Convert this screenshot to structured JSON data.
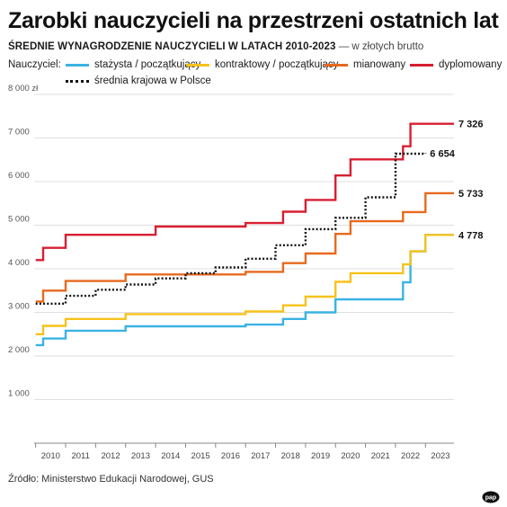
{
  "header": {
    "title": "Zarobki nauczycieli na przestrzeni ostatnich lat",
    "subtitle_bold": "ŚREDNIE WYNAGRODZENIE NAUCZYCIELI W LATACH 2010-2023",
    "subtitle_light": " — w złotych brutto"
  },
  "legend": {
    "title": "Nauczyciel:",
    "items": [
      {
        "label": "stażysta / początkujący",
        "color": "#3ab3e3",
        "style": "solid"
      },
      {
        "label": "kontraktowy / początkujący",
        "color": "#f7c21c",
        "style": "solid"
      },
      {
        "label": "mianowany",
        "color": "#e8691e",
        "style": "solid"
      },
      {
        "label": "dyplomowany",
        "color": "#d81e32",
        "style": "solid"
      },
      {
        "label": "średnia krajowa w Polsce",
        "color": "#111111",
        "style": "dotted"
      }
    ]
  },
  "footer": {
    "source": "Źródło: Ministerstwo Edukacji Narodowej, GUS"
  },
  "logo": {
    "text": "pap"
  },
  "chart_data": {
    "type": "line",
    "step": true,
    "x_unit": "year (fractional)",
    "xlim": [
      2009.45,
      2023.45
    ],
    "ylim": [
      0,
      8000
    ],
    "yticks": [
      0,
      1000,
      2000,
      3000,
      4000,
      5000,
      6000,
      7000,
      8000
    ],
    "ytick_labels": [
      "",
      "1 000",
      "2 000",
      "3 000",
      "4 000",
      "5 000",
      "6 000",
      "7 000",
      "8 000 zł"
    ],
    "xtick_labels": [
      "2010",
      "2011",
      "2012",
      "2013",
      "2014",
      "2015",
      "2016",
      "2017",
      "2018",
      "2019",
      "2020",
      "2021",
      "2022",
      "2023"
    ],
    "grid": true,
    "series": [
      {
        "name": "stażysta / początkujący",
        "color": "#3ab3e3",
        "points": [
          [
            2009.5,
            2250
          ],
          [
            2009.75,
            2400
          ],
          [
            2010.5,
            2580
          ],
          [
            2012.5,
            2680
          ],
          [
            2016.5,
            2720
          ],
          [
            2017.75,
            2850
          ],
          [
            2018.5,
            3000
          ],
          [
            2019.5,
            3300
          ],
          [
            2021.5,
            3300
          ],
          [
            2021.75,
            3690
          ],
          [
            2022.0,
            4400
          ],
          [
            2022.5,
            4778
          ],
          [
            2023.45,
            4778
          ]
        ]
      },
      {
        "name": "kontraktowy / początkujący",
        "color": "#f7c21c",
        "points": [
          [
            2009.5,
            2500
          ],
          [
            2009.75,
            2690
          ],
          [
            2010.5,
            2850
          ],
          [
            2012.5,
            2960
          ],
          [
            2016.5,
            3020
          ],
          [
            2017.75,
            3160
          ],
          [
            2018.5,
            3360
          ],
          [
            2019.5,
            3700
          ],
          [
            2020.0,
            3900
          ],
          [
            2021.75,
            4100
          ],
          [
            2022.0,
            4400
          ],
          [
            2022.5,
            4778
          ],
          [
            2023.45,
            4778
          ]
        ]
      },
      {
        "name": "mianowany",
        "color": "#e8691e",
        "points": [
          [
            2009.5,
            3250
          ],
          [
            2009.75,
            3500
          ],
          [
            2010.5,
            3720
          ],
          [
            2012.5,
            3870
          ],
          [
            2016.5,
            3930
          ],
          [
            2017.75,
            4130
          ],
          [
            2018.5,
            4350
          ],
          [
            2019.5,
            4800
          ],
          [
            2020.0,
            5090
          ],
          [
            2021.75,
            5300
          ],
          [
            2022.5,
            5733
          ],
          [
            2023.45,
            5733
          ]
        ]
      },
      {
        "name": "dyplomowany",
        "color": "#d81e32",
        "points": [
          [
            2009.5,
            4200
          ],
          [
            2009.75,
            4480
          ],
          [
            2010.5,
            4780
          ],
          [
            2013.5,
            4970
          ],
          [
            2016.5,
            5050
          ],
          [
            2017.75,
            5310
          ],
          [
            2018.5,
            5580
          ],
          [
            2019.5,
            6140
          ],
          [
            2020.0,
            6510
          ],
          [
            2021.75,
            6810
          ],
          [
            2022.0,
            7326
          ],
          [
            2023.45,
            7326
          ]
        ]
      },
      {
        "name": "średnia krajowa w Polsce",
        "color": "#111111",
        "dotted": true,
        "points": [
          [
            2009.5,
            3200
          ],
          [
            2010.5,
            3380
          ],
          [
            2011.5,
            3520
          ],
          [
            2012.5,
            3640
          ],
          [
            2013.5,
            3780
          ],
          [
            2014.5,
            3900
          ],
          [
            2015.5,
            4030
          ],
          [
            2016.5,
            4230
          ],
          [
            2017.5,
            4540
          ],
          [
            2018.5,
            4910
          ],
          [
            2019.5,
            5170
          ],
          [
            2020.5,
            5640
          ],
          [
            2021.5,
            6640
          ],
          [
            2022.5,
            6654
          ]
        ]
      }
    ],
    "end_labels": [
      {
        "series": "dyplomowany",
        "text": "7 326",
        "value": 7326
      },
      {
        "series": "średnia krajowa w Polsce",
        "text": "6 654",
        "value": 6654
      },
      {
        "series": "mianowany",
        "text": "5 733",
        "value": 5733
      },
      {
        "series": "stażysta / początkujący",
        "text": "4 778",
        "value": 4778
      }
    ]
  }
}
